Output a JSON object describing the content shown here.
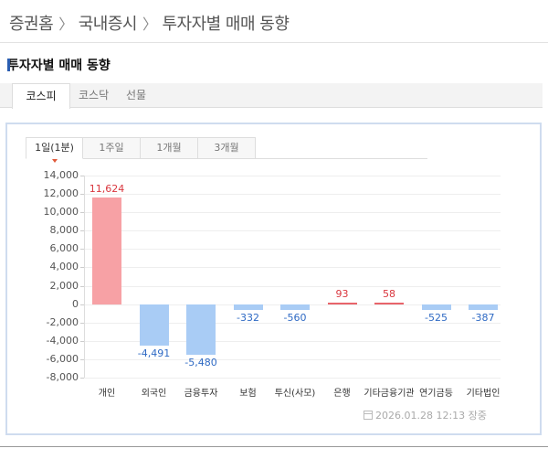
{
  "breadcrumb": [
    "증권홈",
    "국내증시",
    "투자자별 매매 동향"
  ],
  "section_title": "투자자별 매매 동향",
  "market_tabs": [
    {
      "label": "코스피",
      "active": true
    },
    {
      "label": "코스닥",
      "active": false
    },
    {
      "label": "선물",
      "active": false
    }
  ],
  "period_tabs": [
    {
      "label": "1일(1분)",
      "active": true
    },
    {
      "label": "1주일",
      "active": false
    },
    {
      "label": "1개월",
      "active": false
    },
    {
      "label": "3개월",
      "active": false
    }
  ],
  "timestamp": "2026.01.28 12:13 장중",
  "colors": {
    "positive": "#f7a1a5",
    "positive_text": "#d9363e",
    "negative": "#a9ccf5",
    "negative_text": "#2f6ac4",
    "accent": "#2a5db0"
  },
  "chart_data": {
    "type": "bar",
    "title": "투자자별 매매 동향",
    "categories": [
      "개인",
      "외국인",
      "금융투자",
      "보험",
      "투신(사모)",
      "은행",
      "기타금융기관",
      "연기금등",
      "기타법인"
    ],
    "values": [
      11624,
      -4491,
      -5480,
      -332,
      -560,
      93,
      58,
      -525,
      -387
    ],
    "value_labels": [
      "11,624",
      "-4,491",
      "-5,480",
      "-332",
      "-560",
      "93",
      "58",
      "-525",
      "-387"
    ],
    "yticks": [
      "14,000",
      "12,000",
      "10,000",
      "8,000",
      "6,000",
      "4,000",
      "2,000",
      "0",
      "-2,000",
      "-4,000",
      "-6,000",
      "-8,000"
    ],
    "ylim": [
      -8000,
      14000
    ],
    "xlabel": "",
    "ylabel": "",
    "grid": true,
    "legend": null
  }
}
